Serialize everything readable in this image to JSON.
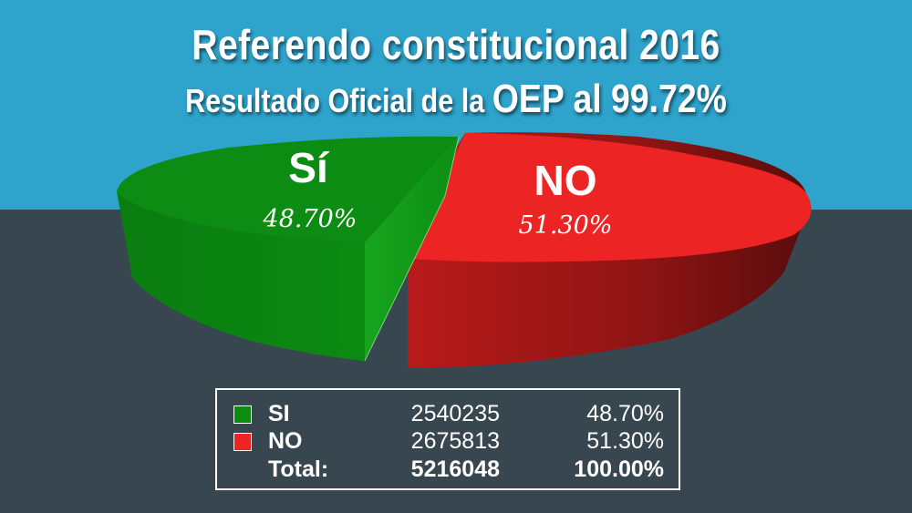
{
  "header": {
    "title": "Referendo constitucional 2016",
    "subtitle_part1": "Resultado Oficial de la ",
    "subtitle_part2": "OEP al 99.72%"
  },
  "colors": {
    "background_top": "#2ea3cc",
    "background_bottom": "#38474f",
    "si": "#0c8c12",
    "no": "#ec2424"
  },
  "chart_data": {
    "type": "pie",
    "title": "Referendo constitucional 2016",
    "subtitle": "Resultado Oficial de la OEP al 99.72%",
    "slices": [
      {
        "name": "Sí",
        "value": 48.7,
        "value_label": "48.70%",
        "color": "#0c8c12",
        "exploded": true
      },
      {
        "name": "NO",
        "value": 51.3,
        "value_label": "51.30%",
        "color": "#ec2424",
        "exploded": false
      }
    ],
    "style": "3d-exploded"
  },
  "legend": {
    "rows": [
      {
        "label": "SI",
        "votes": "2540235",
        "percent": "48.70%",
        "color": "#0c8c12"
      },
      {
        "label": "NO",
        "votes": "2675813",
        "percent": "51.30%",
        "color": "#ec2424"
      }
    ],
    "total": {
      "label": "Total:",
      "votes": "5216048",
      "percent": "100.00%"
    }
  }
}
